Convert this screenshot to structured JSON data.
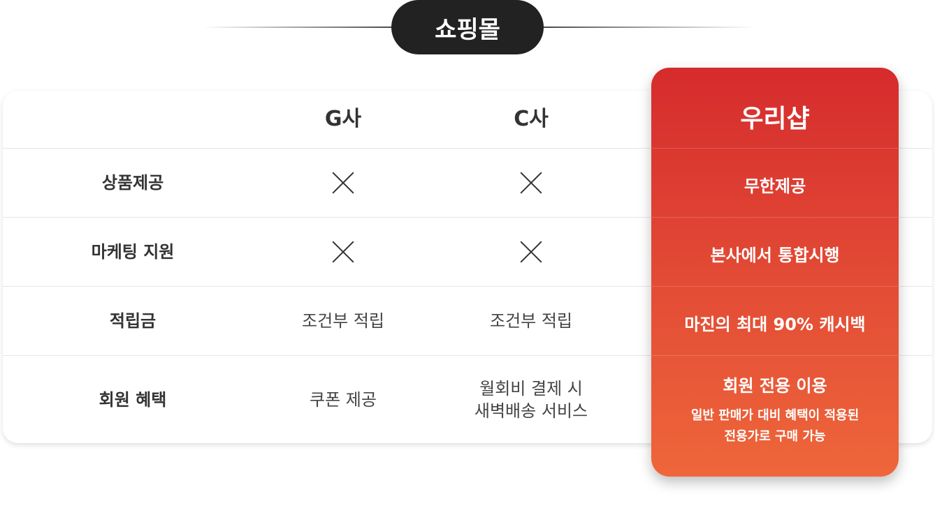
{
  "title": "쇼핑몰",
  "columns": {
    "g": "G사",
    "c": "C사",
    "ours": "우리샵"
  },
  "rows": [
    {
      "label": "상품제공",
      "g": "x-icon",
      "c": "x-icon",
      "ours": "무한제공"
    },
    {
      "label": "마케팅 지원",
      "g": "x-icon",
      "c": "x-icon",
      "ours": "본사에서 통합시행"
    },
    {
      "label": "적립금",
      "g": "조건부 적립",
      "c": "조건부 적립",
      "ours": "마진의 최대 90% 캐시백"
    },
    {
      "label": "회원 혜택",
      "g": "쿠폰 제공",
      "c_line1": "월회비 결제 시",
      "c_line2": "새벽배송 서비스",
      "ours": "회원 전용 이용",
      "ours_sub1": "일반 판매가 대비 혜택이 적용된",
      "ours_sub2": "전용가로 구매 가능"
    }
  ],
  "colors": {
    "accent_top": "#d62b2d",
    "accent_bottom": "#ee663a",
    "pill": "#222222"
  }
}
